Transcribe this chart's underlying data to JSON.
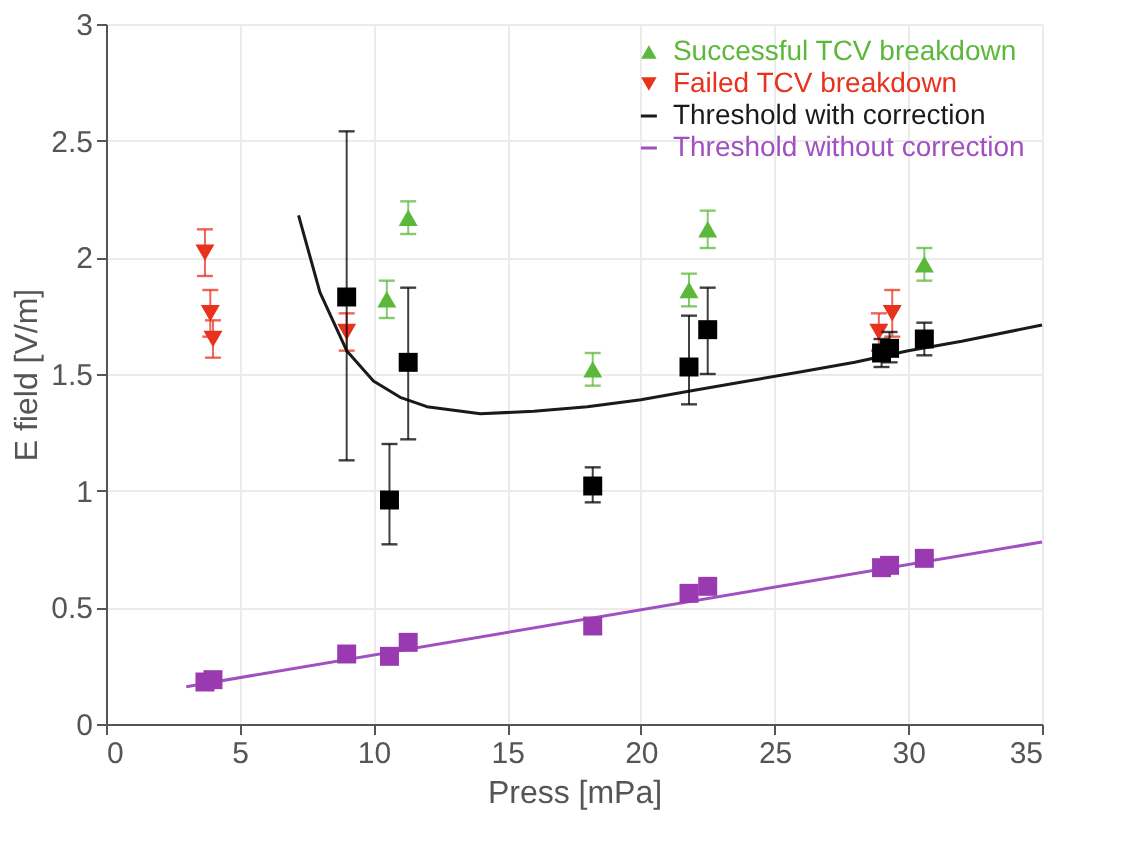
{
  "chart_data": {
    "type": "scatter",
    "xlabel": "Press [mPa]",
    "ylabel": "E field [V/m]",
    "xlim": [
      0,
      35
    ],
    "ylim": [
      0,
      3
    ],
    "xticks": [
      0,
      5,
      10,
      15,
      20,
      25,
      30,
      35
    ],
    "yticks": [
      0,
      0.5,
      1,
      1.5,
      2,
      2.5,
      3
    ],
    "grid": true,
    "legend": "top right",
    "series": [
      {
        "name": "Successful TCV breakdown",
        "marker": "triangle",
        "color": "#5cb83a",
        "x": [
          10.5,
          11.3,
          18.2,
          21.8,
          22.5,
          30.6
        ],
        "values": [
          1.82,
          2.17,
          1.52,
          1.86,
          2.12,
          1.97
        ],
        "errors": [
          0.08,
          0.07,
          0.07,
          0.07,
          0.08,
          0.07
        ]
      },
      {
        "name": "Failed TCV breakdown",
        "marker": "triangle-down",
        "color": "#e8321e",
        "x": [
          3.7,
          3.9,
          4.0,
          9.0,
          28.9,
          29.4
        ],
        "values": [
          2.02,
          1.76,
          1.65,
          1.68,
          1.68,
          1.76
        ],
        "errors": [
          0.1,
          0.1,
          0.08,
          0.08,
          0.08,
          0.1
        ]
      },
      {
        "name": "Threshold with correction",
        "type": "line",
        "color": "#1a1a1a",
        "x": [
          7.2,
          8,
          9,
          10,
          11,
          12,
          14,
          16,
          18,
          20,
          22,
          24,
          26,
          28,
          30,
          32,
          35
        ],
        "values": [
          2.18,
          1.85,
          1.6,
          1.47,
          1.4,
          1.36,
          1.33,
          1.34,
          1.36,
          1.39,
          1.43,
          1.47,
          1.51,
          1.55,
          1.6,
          1.64,
          1.71
        ]
      },
      {
        "name": "Threshold without correction",
        "type": "line",
        "color": "#a050c0",
        "x": [
          3,
          35
        ],
        "values": [
          0.16,
          0.78
        ]
      },
      {
        "marker": "square",
        "color": "#000000",
        "x": [
          9,
          10.6,
          11.3,
          18.2,
          21.8,
          22.5,
          29,
          29.3,
          30.6
        ],
        "values": [
          1.83,
          0.96,
          1.55,
          1.02,
          1.53,
          1.69,
          1.59,
          1.61,
          1.65
        ],
        "errors": [
          [
            1.13,
            2.54
          ],
          [
            0.77,
            1.2
          ],
          [
            1.22,
            1.87
          ],
          [
            0.95,
            1.1
          ],
          [
            1.37,
            1.75
          ],
          [
            1.5,
            1.87
          ],
          [
            1.53,
            1.65
          ],
          [
            1.55,
            1.68
          ],
          [
            1.58,
            1.72
          ]
        ]
      },
      {
        "marker": "square",
        "color": "#9a3ab0",
        "x": [
          3.7,
          4,
          9,
          10.6,
          11.3,
          18.2,
          21.8,
          22.5,
          29,
          29.3,
          30.6
        ],
        "values": [
          0.18,
          0.19,
          0.3,
          0.29,
          0.35,
          0.42,
          0.56,
          0.59,
          0.67,
          0.68,
          0.71
        ]
      }
    ]
  }
}
